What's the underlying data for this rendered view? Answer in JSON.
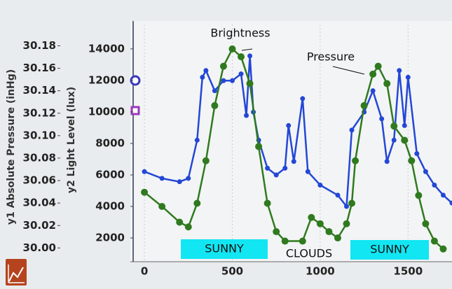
{
  "chart_data": {
    "type": "line",
    "y_label": "y1 Absolute Pressure (inHg)",
    "y2_label": "y2 Light Level (lux)",
    "xlim": [
      -80,
      1750
    ],
    "xticks": [
      0,
      500,
      1000,
      1500
    ],
    "ylim": [
      29.989,
      30.199
    ],
    "yticks": [
      {
        "value": 30.0,
        "label": "30.00"
      },
      {
        "value": 30.02,
        "label": "30.02"
      },
      {
        "value": 30.04,
        "label": "30.04"
      },
      {
        "value": 30.06,
        "label": "30.06"
      },
      {
        "value": 30.08,
        "label": "30.08"
      },
      {
        "value": 30.1,
        "label": "30.10"
      },
      {
        "value": 30.12,
        "label": "30.12"
      },
      {
        "value": 30.14,
        "label": "30.14"
      },
      {
        "value": 30.16,
        "label": "30.16"
      },
      {
        "value": 30.18,
        "label": "30.18"
      }
    ],
    "y2lim": [
      580,
      15550
    ],
    "y2ticks": [
      2000,
      4000,
      6000,
      8000,
      10000,
      12000,
      14000
    ],
    "series": [
      {
        "color": "#2347d6",
        "axis": "y1",
        "x": [
          0,
          100,
          200,
          250,
          300,
          330,
          350,
          400,
          450,
          500,
          550,
          580,
          600,
          620,
          650,
          700,
          750,
          800,
          820,
          850,
          900,
          930,
          1000,
          1100,
          1150,
          1180,
          1250,
          1300,
          1350,
          1380,
          1420,
          1450,
          1480,
          1500,
          1550,
          1600,
          1650,
          1700,
          1750
        ],
        "values": [
          30.068,
          30.062,
          30.059,
          30.062,
          30.096,
          30.152,
          30.158,
          30.14,
          30.149,
          30.149,
          30.155,
          30.118,
          30.171,
          30.121,
          30.096,
          30.071,
          30.065,
          30.071,
          30.109,
          30.077,
          30.133,
          30.068,
          30.056,
          30.047,
          30.037,
          30.105,
          30.121,
          30.14,
          30.115,
          30.077,
          30.096,
          30.158,
          30.109,
          30.152,
          30.084,
          30.068,
          30.056,
          30.047,
          30.04
        ]
      },
      {
        "color": "#2f7a1f",
        "axis": "y2",
        "x": [
          0,
          100,
          200,
          250,
          300,
          350,
          400,
          450,
          500,
          550,
          600,
          650,
          700,
          750,
          800,
          900,
          950,
          1000,
          1050,
          1100,
          1150,
          1180,
          1200,
          1250,
          1300,
          1330,
          1380,
          1420,
          1480,
          1520,
          1560,
          1600,
          1650,
          1700
        ],
        "values": [
          4900,
          4000,
          3000,
          2700,
          4200,
          6900,
          10400,
          12900,
          14000,
          13500,
          11800,
          7800,
          4200,
          2400,
          1800,
          1800,
          3300,
          2900,
          2400,
          2000,
          2900,
          4200,
          6900,
          10400,
          12400,
          12900,
          11800,
          9100,
          8200,
          6900,
          4700,
          2900,
          1800,
          1300
        ]
      }
    ],
    "annotations": [
      "Brightness",
      "Pressure",
      "SUNNY",
      "CLOUDS",
      "SUNNY"
    ]
  }
}
